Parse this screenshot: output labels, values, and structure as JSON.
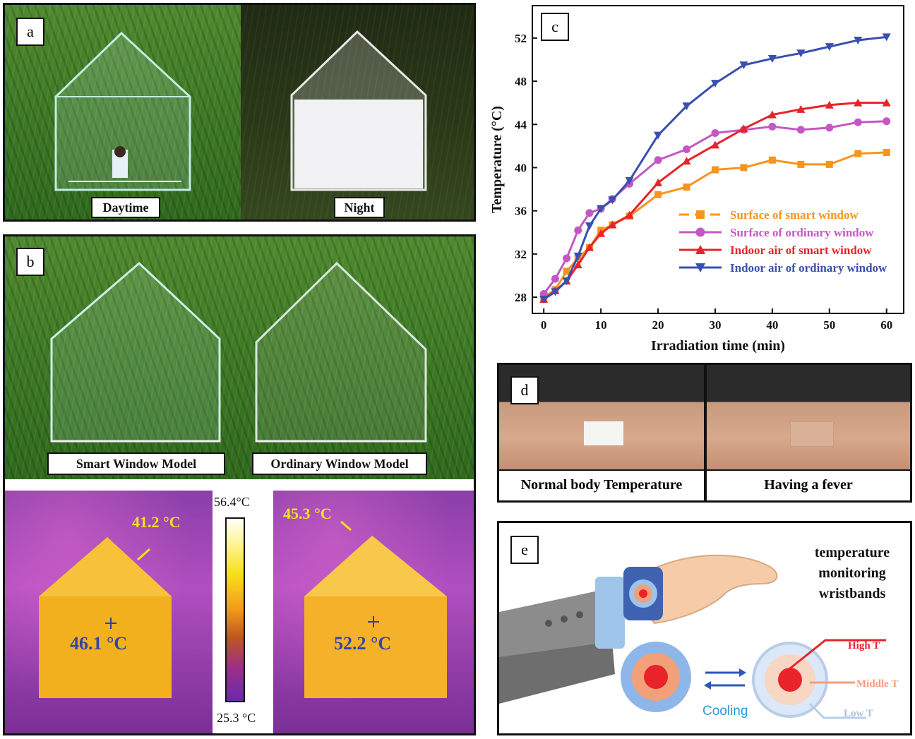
{
  "panels": {
    "a": {
      "tag": "a",
      "left_caption": "Daytime",
      "right_caption": "Night"
    },
    "b": {
      "tag": "b",
      "left_caption": "Smart Window Model",
      "right_caption": "Ordinary Window Model",
      "thermal_left": {
        "top_label": "41.2 °C",
        "center_label": "46.1 °C"
      },
      "thermal_right": {
        "top_label": "45.3 °C",
        "center_label": "52.2 °C"
      },
      "colorbar": {
        "max": "56.4°C",
        "min": "25.3 °C"
      }
    },
    "c": {
      "tag": "c"
    },
    "d": {
      "tag": "d",
      "left_caption": "Normal body Temperature",
      "right_caption": "Having a fever"
    },
    "e": {
      "tag": "e",
      "title_lines": [
        "temperature",
        "monitoring",
        "wristbands"
      ],
      "cooling_label": "Cooling",
      "high_label": "High T",
      "middle_label": "Middle T",
      "low_label": "Low T"
    }
  },
  "colors": {
    "orange": "#f7941d",
    "magenta": "#c457c4",
    "red": "#e8232a",
    "blue": "#3a4fb0"
  },
  "chart_data": {
    "type": "line",
    "xlabel": "Irradiation time (min)",
    "ylabel": "Temperature (°C)",
    "xlim": [
      -2,
      63
    ],
    "ylim": [
      26.5,
      55
    ],
    "xticks": [
      0,
      10,
      20,
      30,
      40,
      50,
      60
    ],
    "yticks": [
      28,
      32,
      36,
      40,
      44,
      48,
      52
    ],
    "legend_position": "bottom-right",
    "series": [
      {
        "name": "Surface of smart window",
        "color": "#f7941d",
        "marker": "square",
        "dashed": true,
        "x": [
          0,
          2,
          4,
          6,
          8,
          10,
          12,
          15,
          20,
          25,
          30,
          35,
          40,
          45,
          50,
          55,
          60
        ],
        "values": [
          28.0,
          28.7,
          30.4,
          31.6,
          32.6,
          34.2,
          34.7,
          35.5,
          37.5,
          38.2,
          39.8,
          40.0,
          40.7,
          40.3,
          40.3,
          41.3,
          41.4
        ]
      },
      {
        "name": "Surface of ordinary window",
        "color": "#c457c4",
        "marker": "circle",
        "dashed": false,
        "x": [
          0,
          2,
          4,
          6,
          8,
          10,
          12,
          15,
          20,
          25,
          30,
          35,
          40,
          45,
          50,
          55,
          60
        ],
        "values": [
          28.3,
          29.7,
          31.6,
          34.2,
          35.8,
          36.2,
          37.1,
          38.5,
          40.7,
          41.7,
          43.2,
          43.5,
          43.8,
          43.5,
          43.7,
          44.2,
          44.3
        ]
      },
      {
        "name": "Indoor air of smart window",
        "color": "#e8232a",
        "marker": "triangle-up",
        "dashed": false,
        "x": [
          0,
          2,
          4,
          6,
          8,
          10,
          12,
          15,
          20,
          25,
          30,
          35,
          40,
          45,
          50,
          55,
          60
        ],
        "values": [
          27.8,
          28.6,
          29.5,
          31.0,
          32.6,
          33.9,
          34.7,
          35.6,
          38.6,
          40.6,
          42.1,
          43.6,
          44.9,
          45.4,
          45.8,
          46.0,
          46.0
        ]
      },
      {
        "name": "Indoor air of ordinary window",
        "color": "#3a4fb0",
        "marker": "triangle-down",
        "dashed": false,
        "x": [
          0,
          2,
          4,
          6,
          8,
          10,
          12,
          15,
          20,
          25,
          30,
          35,
          40,
          45,
          50,
          55,
          60
        ],
        "values": [
          27.8,
          28.5,
          29.5,
          31.8,
          34.6,
          36.2,
          37.0,
          38.8,
          43.0,
          45.7,
          47.8,
          49.5,
          50.1,
          50.6,
          51.2,
          51.8,
          52.1
        ]
      }
    ]
  }
}
